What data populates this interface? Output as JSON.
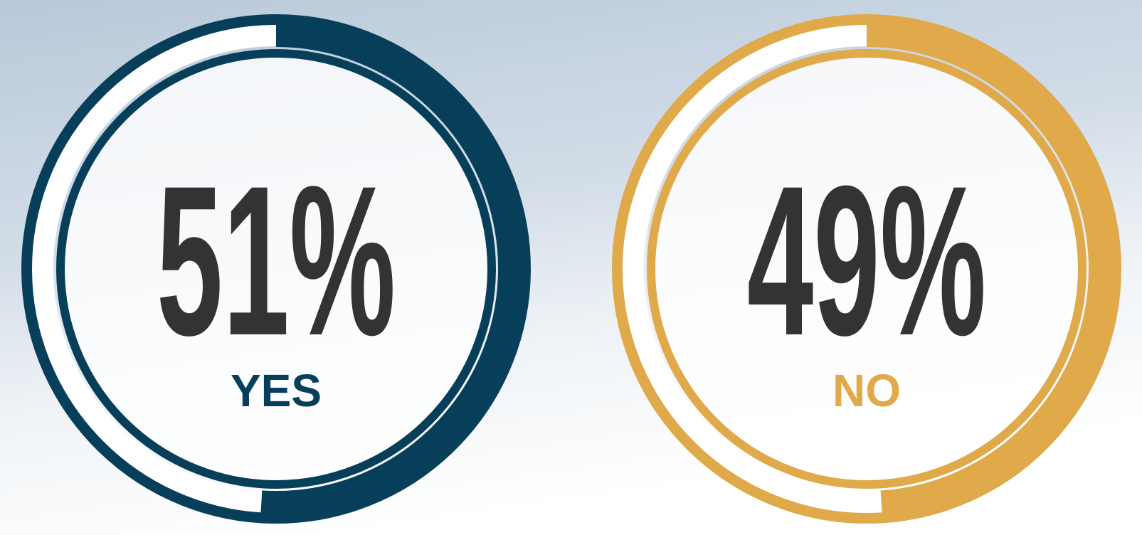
{
  "chart_data": [
    {
      "type": "gauge",
      "categories": [
        "YES"
      ],
      "values": [
        51
      ],
      "value_labels": [
        "51%"
      ],
      "color": "#073f5a",
      "ylim": [
        0,
        100
      ]
    },
    {
      "type": "gauge",
      "categories": [
        "NO"
      ],
      "values": [
        49
      ],
      "value_labels": [
        "49%"
      ],
      "color": "#e0a94a",
      "ylim": [
        0,
        100
      ]
    }
  ]
}
